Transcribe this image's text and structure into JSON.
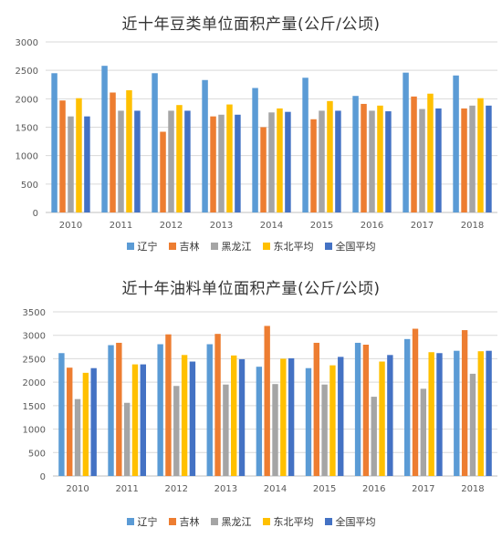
{
  "chart_data": [
    {
      "type": "bar",
      "title": "近十年豆类单位面积产量(公斤/公顷)",
      "categories": [
        "2010",
        "2011",
        "2012",
        "2013",
        "2014",
        "2015",
        "2016",
        "2017",
        "2018"
      ],
      "ylim": [
        0,
        3000
      ],
      "yticks": [
        0,
        500,
        1000,
        1500,
        2000,
        2500,
        3000
      ],
      "grid": true,
      "legend_position": "bottom",
      "series": [
        {
          "name": "辽宁",
          "color": "#5B9BD5",
          "values": [
            2450,
            2580,
            2450,
            2330,
            2190,
            2370,
            2050,
            2460,
            2410
          ]
        },
        {
          "name": "吉林",
          "color": "#ED7D31",
          "values": [
            1970,
            2110,
            1420,
            1690,
            1500,
            1640,
            1910,
            2040,
            1830
          ]
        },
        {
          "name": "黑龙江",
          "color": "#A5A5A5",
          "values": [
            1690,
            1790,
            1790,
            1720,
            1760,
            1790,
            1790,
            1820,
            1880
          ]
        },
        {
          "name": "东北平均",
          "color": "#FFC000",
          "values": [
            2010,
            2150,
            1890,
            1900,
            1830,
            1960,
            1880,
            2090,
            2010
          ]
        },
        {
          "name": "全国平均",
          "color": "#4472C4",
          "values": [
            1690,
            1790,
            1790,
            1720,
            1770,
            1790,
            1780,
            1830,
            1880
          ]
        }
      ]
    },
    {
      "type": "bar",
      "title": "近十年油料单位面积产量(公斤/公顷)",
      "categories": [
        "2010",
        "2011",
        "2012",
        "2013",
        "2014",
        "2015",
        "2016",
        "2017",
        "2018"
      ],
      "ylim": [
        0,
        3500
      ],
      "yticks": [
        0,
        500,
        1000,
        1500,
        2000,
        2500,
        3000,
        3500
      ],
      "grid": true,
      "legend_position": "bottom",
      "series": [
        {
          "name": "辽宁",
          "color": "#5B9BD5",
          "values": [
            2620,
            2790,
            2810,
            2810,
            2330,
            2300,
            2840,
            2920,
            2670
          ]
        },
        {
          "name": "吉林",
          "color": "#ED7D31",
          "values": [
            2310,
            2840,
            3020,
            3030,
            3200,
            2840,
            2800,
            3140,
            3110
          ]
        },
        {
          "name": "黑龙江",
          "color": "#A5A5A5",
          "values": [
            1640,
            1560,
            1920,
            1950,
            1960,
            1950,
            1690,
            1860,
            2180
          ]
        },
        {
          "name": "东北平均",
          "color": "#FFC000",
          "values": [
            2200,
            2380,
            2580,
            2570,
            2500,
            2360,
            2440,
            2640,
            2660
          ]
        },
        {
          "name": "全国平均",
          "color": "#4472C4",
          "values": [
            2300,
            2380,
            2440,
            2490,
            2510,
            2540,
            2580,
            2620,
            2670
          ]
        }
      ]
    }
  ]
}
